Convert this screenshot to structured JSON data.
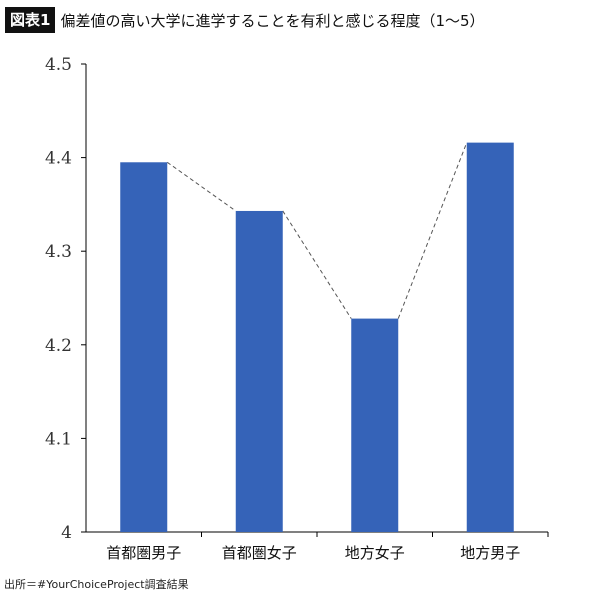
{
  "header": {
    "tag": "図表1",
    "title": "偏差値の高い大学に進学することを有利と感じる程度（1〜5）"
  },
  "source": "出所＝#YourChoiceProject調査結果",
  "colors": {
    "bar": "#3563b8",
    "axis": "#000000",
    "connector": "#555555"
  },
  "chart_data": {
    "type": "bar",
    "title": "偏差値の高い大学に進学することを有利と感じる程度（1〜5）",
    "categories": [
      "首都圏男子",
      "首都圏女子",
      "地方女子",
      "地方男子"
    ],
    "values": [
      4.395,
      4.343,
      4.228,
      4.416
    ],
    "ylim": [
      4.0,
      4.5
    ],
    "yticks": [
      "4",
      "4.1",
      "4.2",
      "4.3",
      "4.4",
      "4.5"
    ],
    "ytick_values": [
      4.0,
      4.1,
      4.2,
      4.3,
      4.4,
      4.5
    ],
    "grid": false,
    "connector_line": "dashed"
  }
}
